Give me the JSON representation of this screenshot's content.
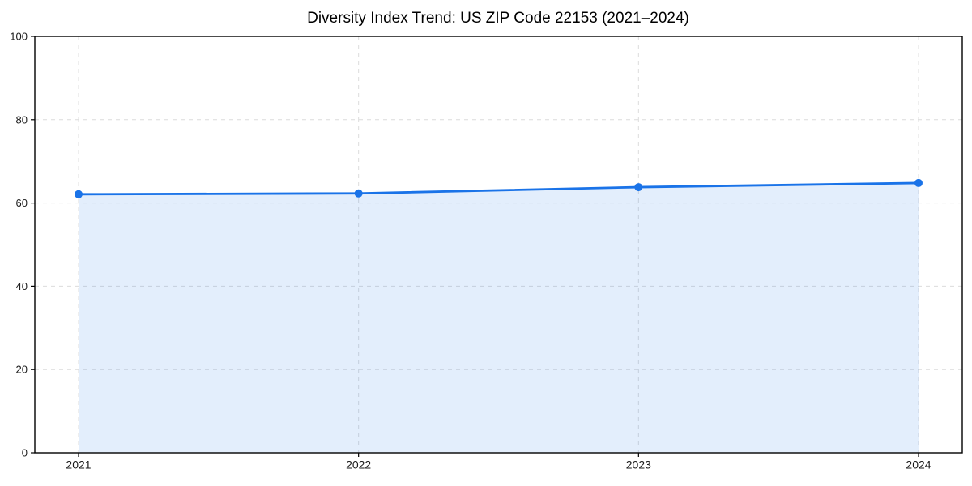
{
  "chart_data": {
    "type": "area",
    "title": "Diversity Index Trend: US ZIP Code 22153 (2021–2024)",
    "x": [
      2021,
      2022,
      2023,
      2024
    ],
    "series": [
      {
        "name": "Diversity Index",
        "values": [
          62.1,
          62.3,
          63.8,
          64.8
        ]
      }
    ],
    "xlabel": "",
    "ylabel": "",
    "xlim": [
      2020.85,
      2024.15
    ],
    "ylim": [
      0,
      100
    ],
    "yticks": [
      0,
      20,
      40,
      60,
      80,
      100
    ],
    "xticks": [
      2021,
      2022,
      2023,
      2024
    ],
    "grid": {
      "visible": true,
      "style": "dashed",
      "horizontal": true,
      "vertical": true
    },
    "legend": "none",
    "marker": {
      "shape": "circle",
      "radius": 5
    },
    "colors": {
      "line": "#1a73e8",
      "marker": "#1a73e8",
      "fill": "rgba(26,115,232,0.12)",
      "grid": "#dcdcdc",
      "axis": "#000000",
      "tick_label": "#1a1a1a",
      "title": "#000000",
      "background": "#ffffff"
    }
  }
}
